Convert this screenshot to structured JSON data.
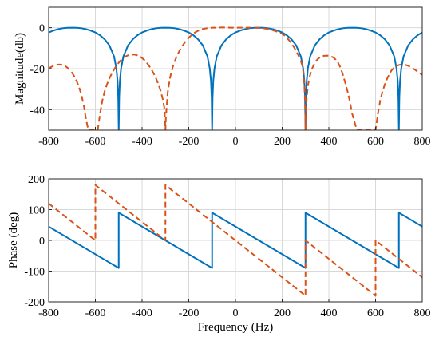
{
  "chart_data": [
    {
      "type": "line",
      "title": "",
      "xlabel": "",
      "ylabel": "Magnitude(db)",
      "xlim": [
        -800,
        800
      ],
      "ylim": [
        -50,
        10
      ],
      "xticks": [
        "-800",
        "-600",
        "-400",
        "-200",
        "0",
        "200",
        "400",
        "600",
        "800"
      ],
      "yticks": [
        "-40",
        "-20",
        "0"
      ],
      "grid": true,
      "series": [
        {
          "color": "#0072BD",
          "style": "solid",
          "points": [
            [
              -800,
              -2.3
            ],
            [
              -780,
              -1.4
            ],
            [
              -760,
              -0.7
            ],
            [
              -740,
              -0.25
            ],
            [
              -720,
              -0.03
            ],
            [
              -700,
              0
            ],
            [
              -680,
              -0.03
            ],
            [
              -660,
              -0.25
            ],
            [
              -640,
              -0.7
            ],
            [
              -620,
              -1.4
            ],
            [
              -600,
              -2.3
            ],
            [
              -580,
              -3.7
            ],
            [
              -560,
              -5.7
            ],
            [
              -540,
              -8.6
            ],
            [
              -520,
              -14
            ],
            [
              -510,
              -20
            ],
            [
              -505,
              -26
            ],
            [
              -502,
              -34
            ],
            [
              -500,
              -50
            ],
            [
              -498,
              -34
            ],
            [
              -495,
              -26
            ],
            [
              -490,
              -20
            ],
            [
              -480,
              -14
            ],
            [
              -460,
              -8.6
            ],
            [
              -440,
              -5.7
            ],
            [
              -420,
              -3.7
            ],
            [
              -400,
              -2.3
            ],
            [
              -380,
              -1.4
            ],
            [
              -360,
              -0.7
            ],
            [
              -340,
              -0.25
            ],
            [
              -320,
              -0.03
            ],
            [
              -300,
              0
            ],
            [
              -280,
              -0.03
            ],
            [
              -260,
              -0.25
            ],
            [
              -240,
              -0.7
            ],
            [
              -220,
              -1.4
            ],
            [
              -200,
              -2.3
            ],
            [
              -180,
              -3.7
            ],
            [
              -160,
              -5.7
            ],
            [
              -140,
              -8.6
            ],
            [
              -120,
              -14
            ],
            [
              -110,
              -20
            ],
            [
              -105,
              -26
            ],
            [
              -102,
              -34
            ],
            [
              -100,
              -50
            ],
            [
              -98,
              -34
            ],
            [
              -95,
              -26
            ],
            [
              -90,
              -20
            ],
            [
              -80,
              -14
            ],
            [
              -60,
              -8.6
            ],
            [
              -40,
              -5.7
            ],
            [
              -20,
              -3.7
            ],
            [
              0,
              -2.3
            ],
            [
              20,
              -1.4
            ],
            [
              40,
              -0.7
            ],
            [
              60,
              -0.25
            ],
            [
              80,
              -0.03
            ],
            [
              100,
              0
            ],
            [
              120,
              -0.03
            ],
            [
              140,
              -0.25
            ],
            [
              160,
              -0.7
            ],
            [
              180,
              -1.4
            ],
            [
              200,
              -2.3
            ],
            [
              220,
              -3.7
            ],
            [
              240,
              -5.7
            ],
            [
              260,
              -8.6
            ],
            [
              280,
              -14
            ],
            [
              290,
              -20
            ],
            [
              295,
              -26
            ],
            [
              298,
              -34
            ],
            [
              300,
              -50
            ],
            [
              302,
              -34
            ],
            [
              305,
              -26
            ],
            [
              310,
              -20
            ],
            [
              320,
              -14
            ],
            [
              340,
              -8.6
            ],
            [
              360,
              -5.7
            ],
            [
              380,
              -3.7
            ],
            [
              400,
              -2.3
            ],
            [
              420,
              -1.4
            ],
            [
              440,
              -0.7
            ],
            [
              460,
              -0.25
            ],
            [
              480,
              -0.03
            ],
            [
              500,
              0
            ],
            [
              520,
              -0.03
            ],
            [
              540,
              -0.25
            ],
            [
              560,
              -0.7
            ],
            [
              580,
              -1.4
            ],
            [
              600,
              -2.3
            ],
            [
              620,
              -3.7
            ],
            [
              640,
              -5.7
            ],
            [
              660,
              -8.6
            ],
            [
              680,
              -14
            ],
            [
              690,
              -20
            ],
            [
              695,
              -26
            ],
            [
              698,
              -34
            ],
            [
              700,
              -50
            ],
            [
              702,
              -34
            ],
            [
              705,
              -26
            ],
            [
              710,
              -20
            ],
            [
              720,
              -14
            ],
            [
              740,
              -8.6
            ],
            [
              760,
              -5.7
            ],
            [
              780,
              -3.7
            ],
            [
              800,
              -2.3
            ]
          ]
        },
        {
          "color": "#D95319",
          "style": "dashed",
          "points": [
            [
              -800,
              -19.9
            ],
            [
              -790,
              -19.2
            ],
            [
              -780,
              -18.6
            ],
            [
              -770,
              -18.2
            ],
            [
              -760,
              -18
            ],
            [
              -750,
              -18
            ],
            [
              -740,
              -18.2
            ],
            [
              -730,
              -18.7
            ],
            [
              -720,
              -19.5
            ],
            [
              -710,
              -20.6
            ],
            [
              -700,
              -22
            ],
            [
              -690,
              -23.8
            ],
            [
              -680,
              -26.1
            ],
            [
              -670,
              -29
            ],
            [
              -660,
              -32.7
            ],
            [
              -650,
              -37.7
            ],
            [
              -640,
              -44.7
            ],
            [
              -630,
              -50
            ],
            [
              -600,
              -50
            ],
            [
              -590,
              -50
            ],
            [
              -580,
              -42
            ],
            [
              -570,
              -35.5
            ],
            [
              -560,
              -31
            ],
            [
              -550,
              -27.6
            ],
            [
              -540,
              -24.8
            ],
            [
              -530,
              -22.4
            ],
            [
              -520,
              -20.4
            ],
            [
              -510,
              -18.6
            ],
            [
              -500,
              -17.1
            ],
            [
              -490,
              -15.8
            ],
            [
              -480,
              -14.8
            ],
            [
              -470,
              -14
            ],
            [
              -460,
              -13.5
            ],
            [
              -450,
              -13.2
            ],
            [
              -440,
              -13.1
            ],
            [
              -430,
              -13.2
            ],
            [
              -420,
              -13.5
            ],
            [
              -410,
              -14
            ],
            [
              -400,
              -14.8
            ],
            [
              -390,
              -15.8
            ],
            [
              -380,
              -17.1
            ],
            [
              -370,
              -18.6
            ],
            [
              -360,
              -20.4
            ],
            [
              -350,
              -22.4
            ],
            [
              -340,
              -24.8
            ],
            [
              -330,
              -27.6
            ],
            [
              -320,
              -31
            ],
            [
              -310,
              -35.5
            ],
            [
              -305,
              -39
            ],
            [
              -302,
              -44
            ],
            [
              -300,
              -50
            ],
            [
              -298,
              -44
            ],
            [
              -295,
              -39
            ],
            [
              -290,
              -31.5
            ],
            [
              -280,
              -24.3
            ],
            [
              -270,
              -19.7
            ],
            [
              -260,
              -16.3
            ],
            [
              -250,
              -13.6
            ],
            [
              -240,
              -11.3
            ],
            [
              -230,
              -9.4
            ],
            [
              -220,
              -7.7
            ],
            [
              -210,
              -6.2
            ],
            [
              -200,
              -4.9
            ],
            [
              -190,
              -3.8
            ],
            [
              -180,
              -2.9
            ],
            [
              -170,
              -2.1
            ],
            [
              -160,
              -1.5
            ],
            [
              -150,
              -1
            ],
            [
              -140,
              -0.6
            ],
            [
              -120,
              -0.2
            ],
            [
              -100,
              0
            ],
            [
              -80,
              0
            ],
            [
              -60,
              0.1
            ],
            [
              -40,
              0.1
            ],
            [
              -20,
              0
            ],
            [
              0,
              0
            ],
            [
              20,
              0
            ],
            [
              40,
              0
            ],
            [
              60,
              0
            ],
            [
              80,
              0
            ],
            [
              100,
              -0.1
            ],
            [
              120,
              -0.3
            ],
            [
              140,
              -0.6
            ],
            [
              160,
              -1.2
            ],
            [
              180,
              -2
            ],
            [
              200,
              -3
            ],
            [
              210,
              -3.8
            ],
            [
              220,
              -4.9
            ],
            [
              230,
              -6.2
            ],
            [
              240,
              -7.7
            ],
            [
              250,
              -9.4
            ],
            [
              260,
              -11.3
            ],
            [
              270,
              -13.6
            ],
            [
              280,
              -16.3
            ],
            [
              285,
              -18
            ],
            [
              290,
              -21
            ],
            [
              295,
              -28
            ],
            [
              298,
              -36
            ],
            [
              300,
              -50
            ],
            [
              302,
              -42
            ],
            [
              305,
              -35
            ],
            [
              310,
              -28.3
            ],
            [
              320,
              -22.9
            ],
            [
              330,
              -19.5
            ],
            [
              340,
              -17.2
            ],
            [
              350,
              -15.6
            ],
            [
              360,
              -14.6
            ],
            [
              370,
              -14
            ],
            [
              380,
              -13.7
            ],
            [
              390,
              -13.6
            ],
            [
              400,
              -13.7
            ],
            [
              410,
              -14
            ],
            [
              420,
              -14.6
            ],
            [
              430,
              -15.6
            ],
            [
              440,
              -17.2
            ],
            [
              450,
              -19.5
            ],
            [
              460,
              -22.9
            ],
            [
              470,
              -26.8
            ],
            [
              480,
              -31
            ],
            [
              490,
              -36
            ],
            [
              500,
              -42
            ],
            [
              520,
              -50
            ],
            [
              590,
              -50
            ],
            [
              600,
              -50
            ],
            [
              610,
              -42
            ],
            [
              620,
              -35.5
            ],
            [
              630,
              -31
            ],
            [
              640,
              -27.6
            ],
            [
              650,
              -24.8
            ],
            [
              660,
              -22.4
            ],
            [
              670,
              -20.6
            ],
            [
              680,
              -19.5
            ],
            [
              690,
              -18.7
            ],
            [
              700,
              -18.2
            ],
            [
              710,
              -18
            ],
            [
              720,
              -18
            ],
            [
              730,
              -18.2
            ],
            [
              740,
              -18.6
            ],
            [
              750,
              -19.2
            ],
            [
              760,
              -19.9
            ],
            [
              770,
              -20.6
            ],
            [
              780,
              -21.4
            ],
            [
              790,
              -22.2
            ],
            [
              800,
              -23
            ]
          ]
        }
      ]
    },
    {
      "type": "line",
      "title": "",
      "xlabel": "Frequency (Hz)",
      "ylabel": "Phase (deg)",
      "xlim": [
        -800,
        800
      ],
      "ylim": [
        -200,
        200
      ],
      "xticks": [
        "-800",
        "-600",
        "-400",
        "-200",
        "0",
        "200",
        "400",
        "600",
        "800"
      ],
      "yticks": [
        "-200",
        "-100",
        "0",
        "100",
        "200"
      ],
      "grid": true,
      "series": [
        {
          "color": "#0072BD",
          "style": "solid",
          "points": [
            [
              -800,
              45
            ],
            [
              -500,
              -90
            ],
            [
              -500,
              90
            ],
            [
              -100,
              -90
            ],
            [
              -100,
              90
            ],
            [
              300,
              -90
            ],
            [
              300,
              90
            ],
            [
              700,
              -90
            ],
            [
              700,
              90
            ],
            [
              800,
              45
            ]
          ]
        },
        {
          "color": "#D95319",
          "style": "dashed",
          "points": [
            [
              -800,
              120
            ],
            [
              -600,
              0
            ],
            [
              -600,
              180
            ],
            [
              -300,
              0
            ],
            [
              -300,
              180
            ],
            [
              300,
              -180
            ],
            [
              300,
              0
            ],
            [
              600,
              -180
            ],
            [
              600,
              0
            ],
            [
              800,
              -120
            ]
          ]
        }
      ]
    }
  ]
}
